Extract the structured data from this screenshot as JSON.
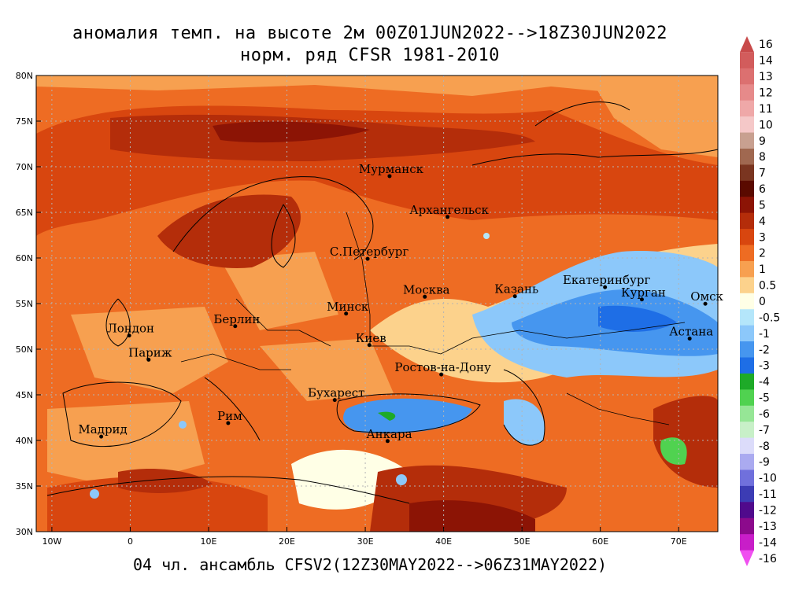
{
  "title_line1": "аномалия темп. на высоте 2м 00Z01JUN2022-->18Z30JUN2022",
  "title_line2": "норм. ряд CFSR 1981-2010",
  "subtitle": "04 чл. ансамбль CFSV2(12Z30MAY2022-->06Z31MAY2022)",
  "lat_labels": [
    "80N",
    "75N",
    "70N",
    "65N",
    "60N",
    "55N",
    "50N",
    "45N",
    "40N",
    "35N",
    "30N"
  ],
  "lon_labels": [
    "10W",
    "0",
    "10E",
    "20E",
    "30E",
    "40E",
    "50E",
    "60E",
    "70E"
  ],
  "cities": [
    {
      "name": "Мурманск",
      "lon": 33.1,
      "lat": 68.97
    },
    {
      "name": "Архангельск",
      "lon": 40.5,
      "lat": 64.5
    },
    {
      "name": "С.Петербург",
      "lon": 30.3,
      "lat": 59.9
    },
    {
      "name": "Москва",
      "lon": 37.6,
      "lat": 55.75
    },
    {
      "name": "Казань",
      "lon": 49.1,
      "lat": 55.8
    },
    {
      "name": "Екатеринбург",
      "lon": 60.6,
      "lat": 56.8
    },
    {
      "name": "Курган",
      "lon": 65.3,
      "lat": 55.45
    },
    {
      "name": "Омск",
      "lon": 73.4,
      "lat": 54.98
    },
    {
      "name": "Астана",
      "lon": 71.4,
      "lat": 51.16
    },
    {
      "name": "Минск",
      "lon": 27.55,
      "lat": 53.9
    },
    {
      "name": "Берлин",
      "lon": 13.4,
      "lat": 52.52
    },
    {
      "name": "Лондон",
      "lon": -0.13,
      "lat": 51.5
    },
    {
      "name": "Париж",
      "lon": 2.35,
      "lat": 48.85
    },
    {
      "name": "Киев",
      "lon": 30.52,
      "lat": 50.45
    },
    {
      "name": "Ростов-на-Дону",
      "lon": 39.7,
      "lat": 47.23
    },
    {
      "name": "Бухарест",
      "lon": 26.1,
      "lat": 44.43
    },
    {
      "name": "Рим",
      "lon": 12.5,
      "lat": 41.9
    },
    {
      "name": "Мадрид",
      "lon": -3.7,
      "lat": 40.42
    },
    {
      "name": "Анкара",
      "lon": 32.85,
      "lat": 39.93
    }
  ],
  "colorbar": [
    {
      "label": "16",
      "color": "#c84a4a"
    },
    {
      "label": "14",
      "color": "#d25c5c"
    },
    {
      "label": "13",
      "color": "#dc7070"
    },
    {
      "label": "12",
      "color": "#e68a8a"
    },
    {
      "label": "11",
      "color": "#efa8a8"
    },
    {
      "label": "10",
      "color": "#f5c8c8"
    },
    {
      "label": "9",
      "color": "#c8a090"
    },
    {
      "label": "8",
      "color": "#a06850"
    },
    {
      "label": "7",
      "color": "#7a3520"
    },
    {
      "label": "6",
      "color": "#5a0a00"
    },
    {
      "label": "5",
      "color": "#8c1405"
    },
    {
      "label": "4",
      "color": "#b42d0a"
    },
    {
      "label": "3",
      "color": "#d8460f"
    },
    {
      "label": "2",
      "color": "#ee6c23"
    },
    {
      "label": "1",
      "color": "#f7a050"
    },
    {
      "label": "0.5",
      "color": "#fcd28c"
    },
    {
      "label": "0",
      "color": "#ffffe6"
    },
    {
      "label": "-0.5",
      "color": "#b4e6fa"
    },
    {
      "label": "-1",
      "color": "#8cc8fa"
    },
    {
      "label": "-2",
      "color": "#4696ef"
    },
    {
      "label": "-3",
      "color": "#1e6ee6"
    },
    {
      "label": "-4",
      "color": "#1eaa28"
    },
    {
      "label": "-5",
      "color": "#50d250"
    },
    {
      "label": "-6",
      "color": "#96e696"
    },
    {
      "label": "-7",
      "color": "#c8f0c8"
    },
    {
      "label": "-8",
      "color": "#dcdcfa"
    },
    {
      "label": "-9",
      "color": "#aaaaf0"
    },
    {
      "label": "-10",
      "color": "#7070dc"
    },
    {
      "label": "-11",
      "color": "#3c3cb4"
    },
    {
      "label": "-12",
      "color": "#500a8c"
    },
    {
      "label": "-13",
      "color": "#8c0a8c"
    },
    {
      "label": "-14",
      "color": "#c81ec8"
    },
    {
      "label": "-16",
      "color": "#f050f0"
    }
  ]
}
